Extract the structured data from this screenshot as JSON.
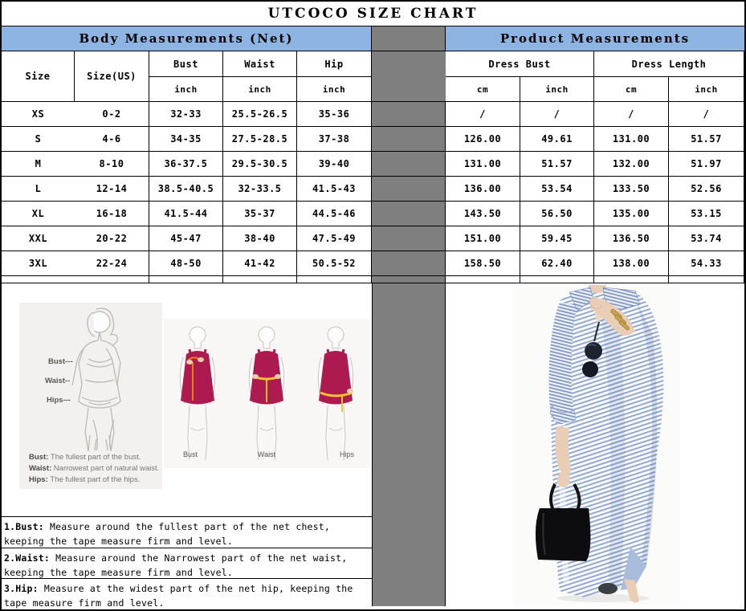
{
  "title": "UTCOCO SIZE CHART",
  "sections": {
    "body": "Body Measurements (Net)",
    "product": "Product Measurements"
  },
  "table": {
    "headers": {
      "size": "Size",
      "size_us": "Size(US)",
      "bust": "Bust",
      "waist": "Waist",
      "hip": "Hip",
      "inch": "inch",
      "cm": "cm",
      "dress_bust": "Dress Bust",
      "dress_length": "Dress Length"
    },
    "rows": [
      {
        "size": "XS",
        "us": "0-2",
        "bust": "32-33",
        "waist": "25.5-26.5",
        "hip": "35-36",
        "db_cm": "/",
        "db_in": "/",
        "dl_cm": "/",
        "dl_in": "/"
      },
      {
        "size": "S",
        "us": "4-6",
        "bust": "34-35",
        "waist": "27.5-28.5",
        "hip": "37-38",
        "db_cm": "126.00",
        "db_in": "49.61",
        "dl_cm": "131.00",
        "dl_in": "51.57"
      },
      {
        "size": "M",
        "us": "8-10",
        "bust": "36-37.5",
        "waist": "29.5-30.5",
        "hip": "39-40",
        "db_cm": "131.00",
        "db_in": "51.57",
        "dl_cm": "132.00",
        "dl_in": "51.97"
      },
      {
        "size": "L",
        "us": "12-14",
        "bust": "38.5-40.5",
        "waist": "32-33.5",
        "hip": "41.5-43",
        "db_cm": "136.00",
        "db_in": "53.54",
        "dl_cm": "133.50",
        "dl_in": "52.56"
      },
      {
        "size": "XL",
        "us": "16-18",
        "bust": "41.5-44",
        "waist": "35-37",
        "hip": "44.5-46",
        "db_cm": "143.50",
        "db_in": "56.50",
        "dl_cm": "135.00",
        "dl_in": "53.15"
      },
      {
        "size": "XXL",
        "us": "20-22",
        "bust": "45-47",
        "waist": "38-40",
        "hip": "47.5-49",
        "db_cm": "151.00",
        "db_in": "59.45",
        "dl_cm": "136.50",
        "dl_in": "53.74"
      },
      {
        "size": "3XL",
        "us": "22-24",
        "bust": "48-50",
        "waist": "41-42",
        "hip": "50.5-52",
        "db_cm": "158.50",
        "db_in": "62.40",
        "dl_cm": "138.00",
        "dl_in": "54.33"
      }
    ]
  },
  "diagram1": {
    "pointer_labels": [
      "Bust---",
      "Waist--",
      "Hips---"
    ],
    "captions": [
      {
        "label": "Bust:",
        "text": "The fullest part of the bust."
      },
      {
        "label": "Waist:",
        "text": "Narrowest part of natural waist."
      },
      {
        "label": "Hips:",
        "text": "The fullest part of the hips."
      }
    ]
  },
  "diagram2": {
    "labels": [
      "Bust",
      "Waist",
      "Hips"
    ]
  },
  "instructions": [
    {
      "label": "1.Bust:",
      "text": "Measure around the fullest part of the net chest, keeping the tape  measure firm and level."
    },
    {
      "label": "2.Waist:",
      "text": "Measure around the Narrowest part of the net waist, keeping the tape  measure firm and level."
    },
    {
      "label": "3.Hip:",
      "text": "Measure at the widest part of the net hip, keeping the tape measure firm and level."
    }
  ],
  "colors": {
    "header_blue": "#8DB4E2",
    "divider_gray": "#7F7F7F",
    "diagram_dress_magenta": "#AD1A4F",
    "photo_stripe_blue": "#93AAD1"
  }
}
